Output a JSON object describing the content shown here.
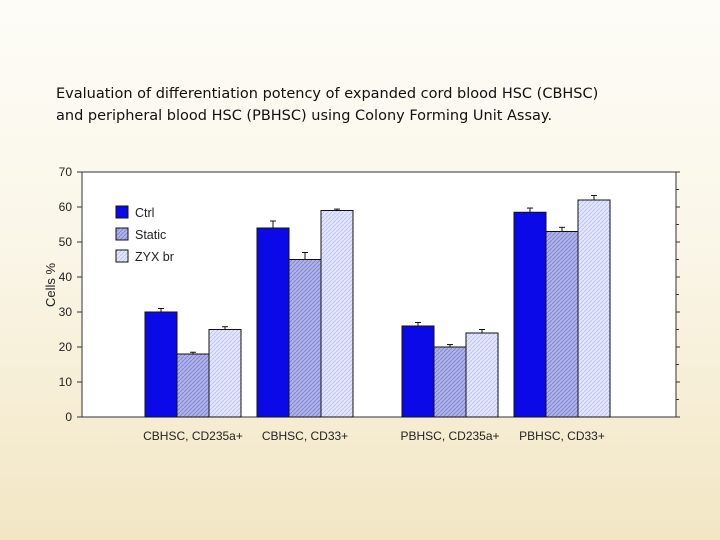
{
  "caption": {
    "line1": "Evaluation of differentiation potency of expanded cord blood HSC (CBHSC)",
    "line2": "and peripheral blood HSC (PBHSC) using Colony Forming Unit Assay."
  },
  "chart_data": {
    "type": "bar",
    "title": "Evaluation of differentiation potency of expanded cord blood HSC (CBHSC) and peripheral blood HSC (PBHSC) using Colony Forming Unit Assay.",
    "xlabel": "",
    "ylabel": "Cells %",
    "ylim": [
      0,
      70
    ],
    "yticks": [
      "0",
      "10",
      "20",
      "30",
      "40",
      "50",
      "60",
      "70"
    ],
    "categories": [
      "CBHSC, CD235a+",
      "CBHSC, CD33+",
      "PBHSC, CD235a+",
      "PBHSC, CD33+"
    ],
    "series": [
      {
        "name": "Ctrl",
        "values": [
          30,
          54,
          26,
          58.5
        ],
        "errors": [
          1.0,
          2.0,
          1.0,
          1.2
        ],
        "color": "#0a0ae8"
      },
      {
        "name": "Static",
        "values": [
          18,
          45,
          20,
          53
        ],
        "errors": [
          0.5,
          2.0,
          0.7,
          1.2
        ],
        "color": "#aeb2e8"
      },
      {
        "name": "ZYX br",
        "values": [
          25,
          59,
          24,
          62
        ],
        "errors": [
          0.8,
          0.4,
          1.0,
          1.3
        ],
        "color": "#dfe3fa"
      }
    ],
    "legend_position": "top-left",
    "grid": false
  }
}
